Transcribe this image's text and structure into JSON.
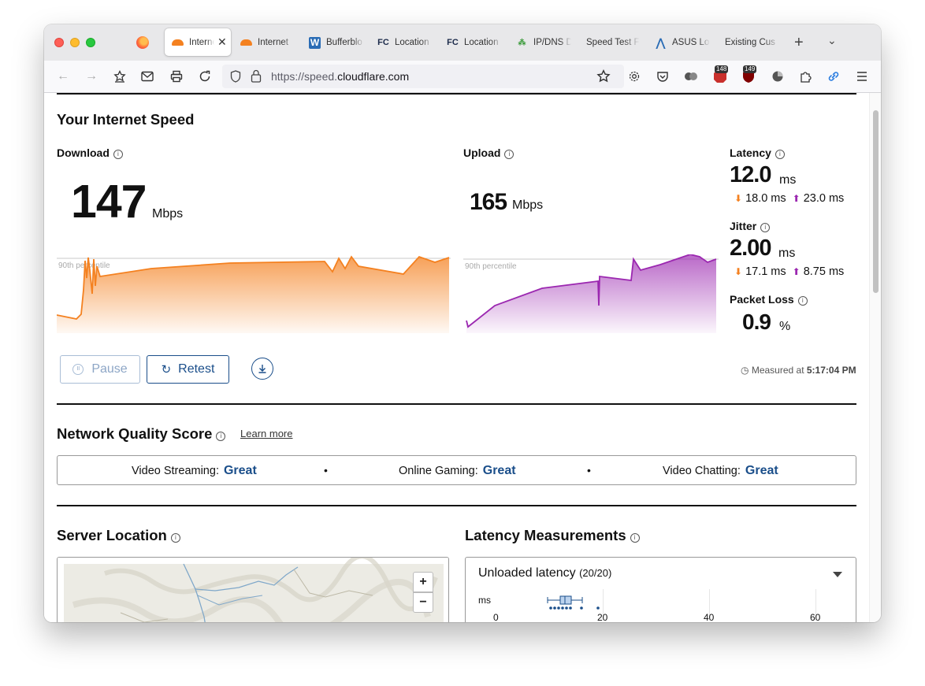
{
  "browser": {
    "tabs": [
      {
        "label": "Interne",
        "favicon": "cloudflare-icon",
        "active": true
      },
      {
        "label": "Internet",
        "favicon": "cloudflare-icon",
        "active": false
      },
      {
        "label": "Bufferblo",
        "favicon": "waveform-icon",
        "active": false
      },
      {
        "label": "Location",
        "favicon": "fcc-icon",
        "active": false
      },
      {
        "label": "Location",
        "favicon": "fcc-icon",
        "active": false
      },
      {
        "label": "IP/DNS D",
        "favicon": "dns-icon",
        "active": false
      },
      {
        "label": "Speed Test F",
        "favicon": "none",
        "active": false
      },
      {
        "label": "ASUS Lo",
        "favicon": "asus-icon",
        "active": false
      },
      {
        "label": "Existing Cus",
        "favicon": "none",
        "active": false
      }
    ],
    "new_tab_label": "+",
    "url_prefix": "https://speed.",
    "url_domain": "cloudflare.com",
    "badges": [
      "148",
      "149"
    ]
  },
  "speed": {
    "section_title": "Your Internet Speed",
    "download": {
      "label": "Download",
      "value": "147",
      "unit": "Mbps",
      "percentile_label": "90th percentile"
    },
    "upload": {
      "label": "Upload",
      "value": "165",
      "unit": "Mbps",
      "percentile_label": "90th percentile"
    },
    "latency": {
      "label": "Latency",
      "value": "12.0",
      "unit": "ms",
      "down": "18.0 ms",
      "up": "23.0 ms"
    },
    "jitter": {
      "label": "Jitter",
      "value": "2.00",
      "unit": "ms",
      "down": "17.1 ms",
      "up": "8.75 ms"
    },
    "packet_loss": {
      "label": "Packet Loss",
      "value": "0.9",
      "unit": "%"
    },
    "pause_label": "Pause",
    "retest_label": "Retest",
    "measured_prefix": "Measured at",
    "measured_time": "5:17:04 PM",
    "colors": {
      "download": "#f48120",
      "upload": "#9b27b0",
      "accent": "#1a4e8a"
    }
  },
  "quality": {
    "title": "Network Quality Score",
    "learn_more": "Learn more",
    "items": [
      {
        "label": "Video Streaming:",
        "value": "Great"
      },
      {
        "label": "Online Gaming:",
        "value": "Great"
      },
      {
        "label": "Video Chatting:",
        "value": "Great"
      }
    ],
    "separator": "•"
  },
  "server": {
    "title": "Server Location",
    "zoom_in": "+",
    "zoom_out": "−"
  },
  "latency_measurements": {
    "title": "Latency Measurements",
    "panel_title": "Unloaded latency",
    "panel_count": "(20/20)",
    "axis_unit": "ms",
    "ticks": [
      "0",
      "20",
      "40",
      "60"
    ]
  }
}
